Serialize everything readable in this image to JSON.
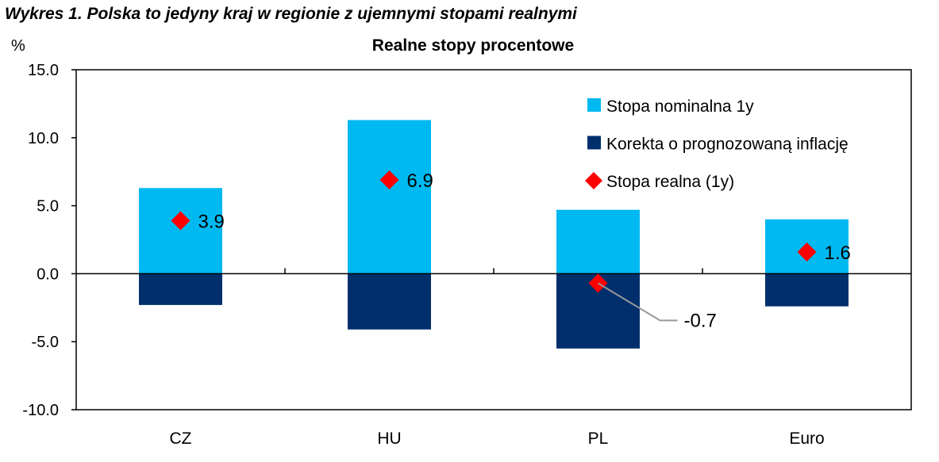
{
  "figure_title": "Wykres 1. Polska to jedyny kraj w regionie z ujemnymi stopami realnymi",
  "chart_data": {
    "type": "bar",
    "title": "Realne stopy procentowe",
    "ylabel": "%",
    "xlabel": "",
    "ylim": [
      -10,
      15
    ],
    "yticks": [
      "15.0",
      "10.0",
      "5.0",
      "0.0",
      "-5.0",
      "-10.0"
    ],
    "ytick_values": [
      15,
      10,
      5,
      0,
      -5,
      -10
    ],
    "categories": [
      "CZ",
      "HU",
      "PL",
      "Euro"
    ],
    "stacked": true,
    "grid": false,
    "legend_position": "top-right",
    "series": [
      {
        "name": "Stopa nominalna 1y",
        "kind": "bar",
        "color": "#00B9F1",
        "values": [
          6.3,
          11.3,
          4.7,
          4.0
        ]
      },
      {
        "name": "Korekta o prognozowaną inflację",
        "kind": "bar",
        "color": "#002F6C",
        "values": [
          -2.3,
          -4.1,
          -5.5,
          -2.4
        ]
      },
      {
        "name": "Stopa realna (1y)",
        "kind": "marker",
        "color": "#FF0000",
        "values": [
          3.9,
          6.9,
          -0.7,
          1.6
        ],
        "labels": [
          "3.9",
          "6.9",
          "-0.7",
          "1.6"
        ]
      }
    ]
  }
}
